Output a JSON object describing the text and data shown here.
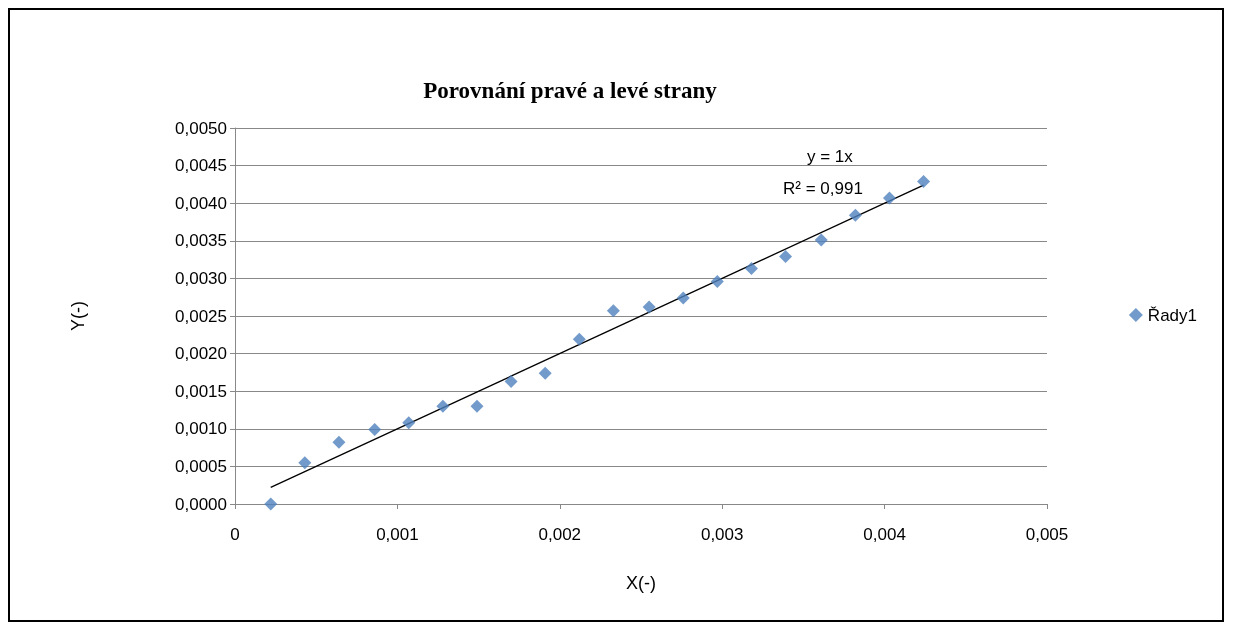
{
  "chart_data": {
    "type": "scatter",
    "title": "Porovnání pravé a levé strany",
    "xlabel": "X(-)",
    "ylabel": "Y(-)",
    "series": [
      {
        "name": "Řady1",
        "color": "#4f81bd",
        "marker": "diamond",
        "x": [
          0.00022,
          0.00043,
          0.00064,
          0.00086,
          0.00107,
          0.00128,
          0.00149,
          0.0017,
          0.00191,
          0.00212,
          0.00233,
          0.00255,
          0.00276,
          0.00297,
          0.00318,
          0.00339,
          0.00361,
          0.00382,
          0.00403,
          0.00424
        ],
        "values": [
          0,
          0.00055,
          0.00082,
          0.00099,
          0.00108,
          0.0013,
          0.0013,
          0.00163,
          0.00174,
          0.00219,
          0.00257,
          0.00262,
          0.00274,
          0.00296,
          0.00313,
          0.00329,
          0.00351,
          0.00384,
          0.00407,
          0.00429
        ]
      },
      {
        "type": "line",
        "color": "#000000",
        "marker": "none",
        "line_style": "solid",
        "x": [
          0.00022,
          0.00424
        ],
        "values": [
          0.00022,
          0.00424
        ]
      }
    ],
    "xlim": [
      0,
      0.005
    ],
    "xticks": [
      0,
      {
        "value": 0.001,
        "label": "0,001"
      },
      {
        "value": 0.002,
        "label": "0,002"
      },
      {
        "value": 0.003,
        "label": "0,003"
      },
      {
        "value": 0.004,
        "label": "0,004"
      },
      {
        "value": 0.005,
        "label": "0,005"
      }
    ],
    "ylim": [
      0,
      0.005
    ],
    "yticks": [
      {
        "value": 0,
        "label": "0,0000"
      },
      {
        "value": 0.0005,
        "label": "0,0005"
      },
      {
        "value": 0.001,
        "label": "0,0010"
      },
      {
        "value": 0.0015,
        "label": "0,0015"
      },
      {
        "value": 0.002,
        "label": "0,0020"
      },
      {
        "value": 0.0025,
        "label": "0,0025"
      },
      {
        "value": 0.003,
        "label": "0,0030"
      },
      {
        "value": 0.0035,
        "label": "0,0035"
      },
      {
        "value": 0.004,
        "label": "0,0040"
      },
      {
        "value": 0.0045,
        "label": "0,0045"
      },
      {
        "value": 0.005,
        "label": "0,0050"
      }
    ],
    "grid": "y",
    "legend": "right",
    "annotations": [
      "y = 1x",
      "R² = 0,991"
    ]
  }
}
